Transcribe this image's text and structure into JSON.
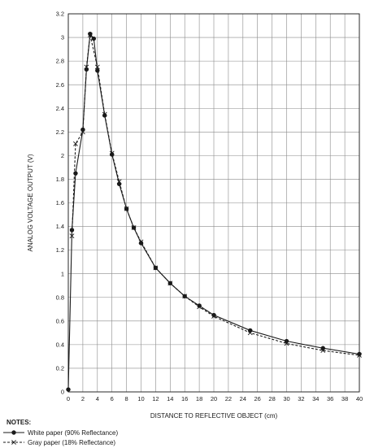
{
  "chart_data": {
    "type": "line",
    "xlabel": "DISTANCE TO REFLECTIVE OBJECT (cm)",
    "ylabel": "ANALOG VOLTAGE OUTPUT (V)",
    "xlim": [
      0,
      40
    ],
    "ylim": [
      0,
      3.2
    ],
    "xticks": [
      "0",
      "2",
      "4",
      "6",
      "8",
      "10",
      "12",
      "14",
      "16",
      "18",
      "20",
      "22",
      "24",
      "26",
      "28",
      "30",
      "32",
      "34",
      "36",
      "38",
      "40"
    ],
    "yticks": [
      "0",
      "0.2",
      "0.4",
      "0.6",
      "0.8",
      "1",
      "1.2",
      "1.4",
      "1.6",
      "1.8",
      "2",
      "2.2",
      "2.4",
      "2.6",
      "2.8",
      "3",
      "3.2"
    ],
    "grid": true,
    "notes_title": "NOTES:",
    "series": [
      {
        "name": "White paper (90% Reflectance)",
        "marker": "circle",
        "line": "solid",
        "x": [
          0,
          0.5,
          1,
          2,
          2.5,
          3,
          3.5,
          4,
          5,
          6,
          7,
          8,
          9,
          10,
          12,
          14,
          16,
          18,
          20,
          25,
          30,
          35,
          40
        ],
        "y": [
          0.02,
          1.37,
          1.85,
          2.22,
          2.73,
          3.03,
          2.99,
          2.72,
          2.34,
          2.01,
          1.76,
          1.55,
          1.39,
          1.26,
          1.05,
          0.92,
          0.81,
          0.73,
          0.65,
          0.52,
          0.43,
          0.37,
          0.32
        ]
      },
      {
        "name": "Gray paper (18% Reflectance)",
        "marker": "cross",
        "line": "dashed",
        "x": [
          0.5,
          1,
          2,
          2.5,
          3,
          4,
          5,
          6,
          7,
          8,
          9,
          10,
          12,
          14,
          16,
          18,
          20,
          25,
          30,
          35,
          40
        ],
        "y": [
          1.32,
          2.1,
          2.2,
          2.75,
          3.02,
          2.75,
          2.35,
          2.02,
          1.78,
          1.55,
          1.39,
          1.27,
          1.05,
          0.92,
          0.81,
          0.72,
          0.64,
          0.5,
          0.41,
          0.35,
          0.31
        ]
      }
    ]
  }
}
